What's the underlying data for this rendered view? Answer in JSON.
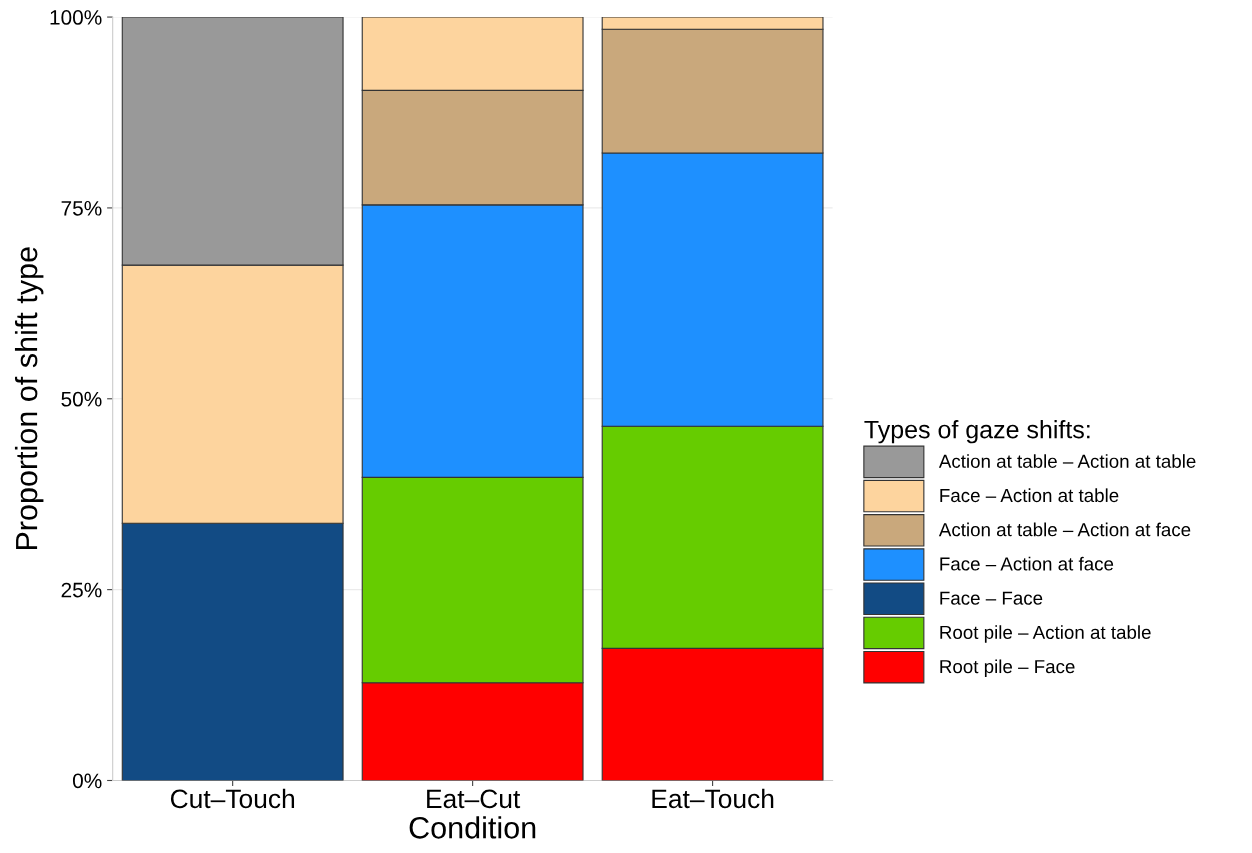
{
  "chart_data": {
    "type": "bar",
    "stacked": true,
    "xlabel": "Condition",
    "ylabel": "Proportion of shift type",
    "legend_title": "Types of gaze shifts:",
    "legend": "right",
    "categories": [
      "Cut–Touch",
      "Eat–Cut",
      "Eat–Touch"
    ],
    "series": [
      {
        "name": "Root pile – Face",
        "color": "#ff0000",
        "values": [
          null,
          12.8,
          17.3
        ]
      },
      {
        "name": "Root pile – Action at table",
        "color": "#66cc00",
        "values": [
          null,
          26.9,
          29.1
        ]
      },
      {
        "name": "Face – Face",
        "color": "#124b84",
        "values": [
          33.7,
          null,
          null
        ]
      },
      {
        "name": "Face – Action at face",
        "color": "#1e90ff",
        "values": [
          null,
          35.7,
          35.8
        ]
      },
      {
        "name": "Action at table – Action at face",
        "color": "#c9a87c",
        "values": [
          null,
          15.0,
          16.2
        ]
      },
      {
        "name": "Face – Action at table",
        "color": "#fdd49e",
        "values": [
          33.8,
          9.6,
          1.6
        ]
      },
      {
        "name": "Action at table – Action at table",
        "color": "#999999",
        "values": [
          32.5,
          null,
          null
        ]
      }
    ],
    "ylim": [
      0,
      100
    ],
    "yticks": [
      {
        "value": 0,
        "label": "0%"
      },
      {
        "value": 25,
        "label": "25%"
      },
      {
        "value": 50,
        "label": "50%"
      },
      {
        "value": 75,
        "label": "75%"
      },
      {
        "value": 100,
        "label": "100%"
      }
    ],
    "grid": "y"
  }
}
